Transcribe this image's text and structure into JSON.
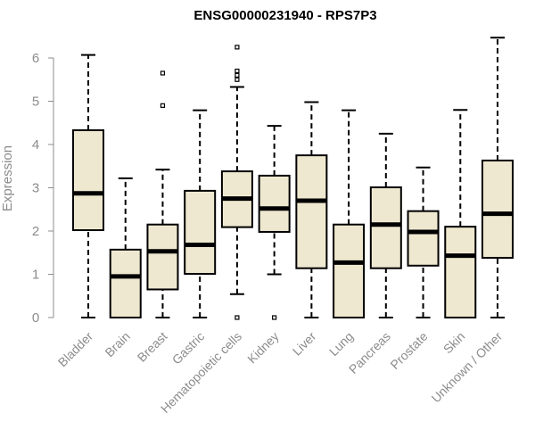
{
  "chart_data": {
    "type": "box",
    "title": "ENSG00000231940 - RPS7P3",
    "xlabel": "",
    "ylabel": "Expression",
    "ylim": [
      0,
      6.5
    ],
    "yticks": [
      0,
      1,
      2,
      3,
      4,
      5,
      6
    ],
    "categories": [
      "Bladder",
      "Brain",
      "Breast",
      "Gastric",
      "Hematopoietic cells",
      "Kidney",
      "Liver",
      "Lung",
      "Pancreas",
      "Prostate",
      "Skin",
      "Unknown / Other"
    ],
    "boxes": [
      {
        "name": "Bladder",
        "min": 0,
        "q1": 2.02,
        "median": 2.87,
        "q3": 4.33,
        "max": 6.07,
        "outliers": []
      },
      {
        "name": "Brain",
        "min": 0,
        "q1": 0,
        "median": 0.95,
        "q3": 1.57,
        "max": 3.22,
        "outliers": []
      },
      {
        "name": "Breast",
        "min": 0,
        "q1": 0.65,
        "median": 1.53,
        "q3": 2.15,
        "max": 3.42,
        "outliers": [
          4.9,
          5.65
        ]
      },
      {
        "name": "Gastric",
        "min": 0,
        "q1": 1.01,
        "median": 1.68,
        "q3": 2.93,
        "max": 4.79,
        "outliers": []
      },
      {
        "name": "Hematopoietic cells",
        "min": 0.54,
        "q1": 2.09,
        "median": 2.75,
        "q3": 3.38,
        "max": 5.33,
        "outliers": [
          0,
          5.5,
          5.6,
          5.7,
          6.25
        ]
      },
      {
        "name": "Kidney",
        "min": 1.0,
        "q1": 1.98,
        "median": 2.52,
        "q3": 3.28,
        "max": 4.43,
        "outliers": [
          0
        ]
      },
      {
        "name": "Liver",
        "min": 0,
        "q1": 1.14,
        "median": 2.7,
        "q3": 3.75,
        "max": 4.98,
        "outliers": []
      },
      {
        "name": "Lung",
        "min": 0,
        "q1": 0,
        "median": 1.27,
        "q3": 2.15,
        "max": 4.79,
        "outliers": []
      },
      {
        "name": "Pancreas",
        "min": 0,
        "q1": 1.14,
        "median": 2.15,
        "q3": 3.01,
        "max": 4.25,
        "outliers": []
      },
      {
        "name": "Prostate",
        "min": 0,
        "q1": 1.2,
        "median": 1.98,
        "q3": 2.46,
        "max": 3.47,
        "outliers": []
      },
      {
        "name": "Skin",
        "min": 0,
        "q1": 0,
        "median": 1.43,
        "q3": 2.1,
        "max": 4.8,
        "outliers": []
      },
      {
        "name": "Unknown / Other",
        "min": 0,
        "q1": 1.38,
        "median": 2.4,
        "q3": 3.63,
        "max": 6.47,
        "outliers": []
      }
    ],
    "colors": {
      "box_fill": "#efe8d0",
      "stroke": "#000000",
      "axis_text": "#8c8c8c"
    },
    "grid": false,
    "legend": "none"
  }
}
